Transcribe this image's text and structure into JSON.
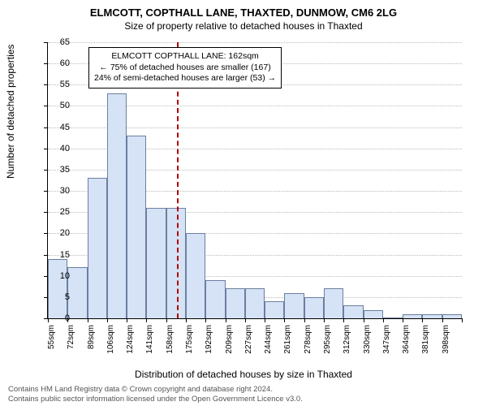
{
  "title": "ELMCOTT, COPTHALL LANE, THAXTED, DUNMOW, CM6 2LG",
  "subtitle": "Size of property relative to detached houses in Thaxted",
  "y_axis_label": "Number of detached properties",
  "x_axis_label": "Distribution of detached houses by size in Thaxted",
  "footer_line1": "Contains HM Land Registry data © Crown copyright and database right 2024.",
  "footer_line2": "Contains public sector information licensed under the Open Government Licence v3.0.",
  "annotation": {
    "line1": "ELMCOTT COPTHALL LANE: 162sqm",
    "line2": "← 75% of detached houses are smaller (167)",
    "line3": "24% of semi-detached houses are larger (53) →"
  },
  "chart": {
    "type": "histogram",
    "ylim": [
      0,
      65
    ],
    "ytick_step": 5,
    "bar_fill": "#d6e2f5",
    "bar_stroke": "#6a7fa0",
    "background_color": "#ffffff",
    "grid_color": "#bbbbbb",
    "ref_line_color": "#b00000",
    "ref_line_x_value": 162,
    "x_tick_labels": [
      "55sqm",
      "72sqm",
      "89sqm",
      "106sqm",
      "124sqm",
      "141sqm",
      "158sqm",
      "175sqm",
      "192sqm",
      "209sqm",
      "227sqm",
      "244sqm",
      "261sqm",
      "278sqm",
      "295sqm",
      "312sqm",
      "330sqm",
      "347sqm",
      "364sqm",
      "381sqm",
      "398sqm"
    ],
    "bar_values": [
      14,
      12,
      33,
      53,
      43,
      26,
      26,
      20,
      9,
      7,
      7,
      4,
      6,
      5,
      7,
      3,
      2,
      0,
      1,
      1,
      1
    ],
    "x_range": [
      55,
      398
    ]
  }
}
